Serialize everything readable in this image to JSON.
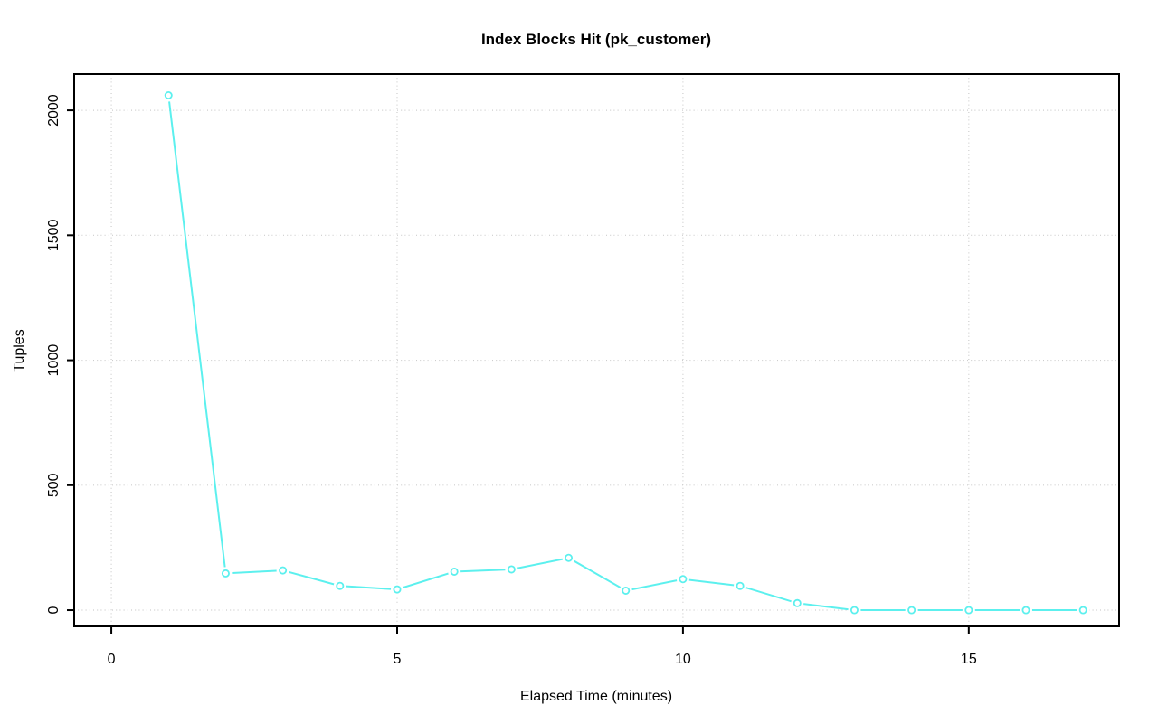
{
  "chart_data": {
    "type": "line",
    "title": "Index Blocks Hit (pk_customer)",
    "xlabel": "Elapsed Time (minutes)",
    "ylabel": "Tuples",
    "x": [
      1,
      2,
      3,
      4,
      5,
      6,
      7,
      8,
      9,
      10,
      11,
      12,
      13,
      14,
      15,
      16,
      17
    ],
    "values": [
      2060,
      147,
      159,
      97,
      83,
      154,
      163,
      209,
      78,
      124,
      97,
      28,
      0,
      0,
      0,
      0,
      0
    ],
    "xticks": [
      0,
      5,
      10,
      15
    ],
    "yticks": [
      0,
      500,
      1000,
      1500,
      2000
    ],
    "xlim": [
      -0.65,
      17.63
    ],
    "ylim": [
      -65,
      2145
    ],
    "grid": "dotted",
    "legend": "none",
    "marker": "open-circle",
    "series_name": "Index Blocks Hit",
    "colors": {
      "series": "#5CF0EE",
      "grid": "#cdcdcd",
      "axis": "#000000",
      "background": "#ffffff",
      "marker_fill": "#ffffff"
    }
  }
}
